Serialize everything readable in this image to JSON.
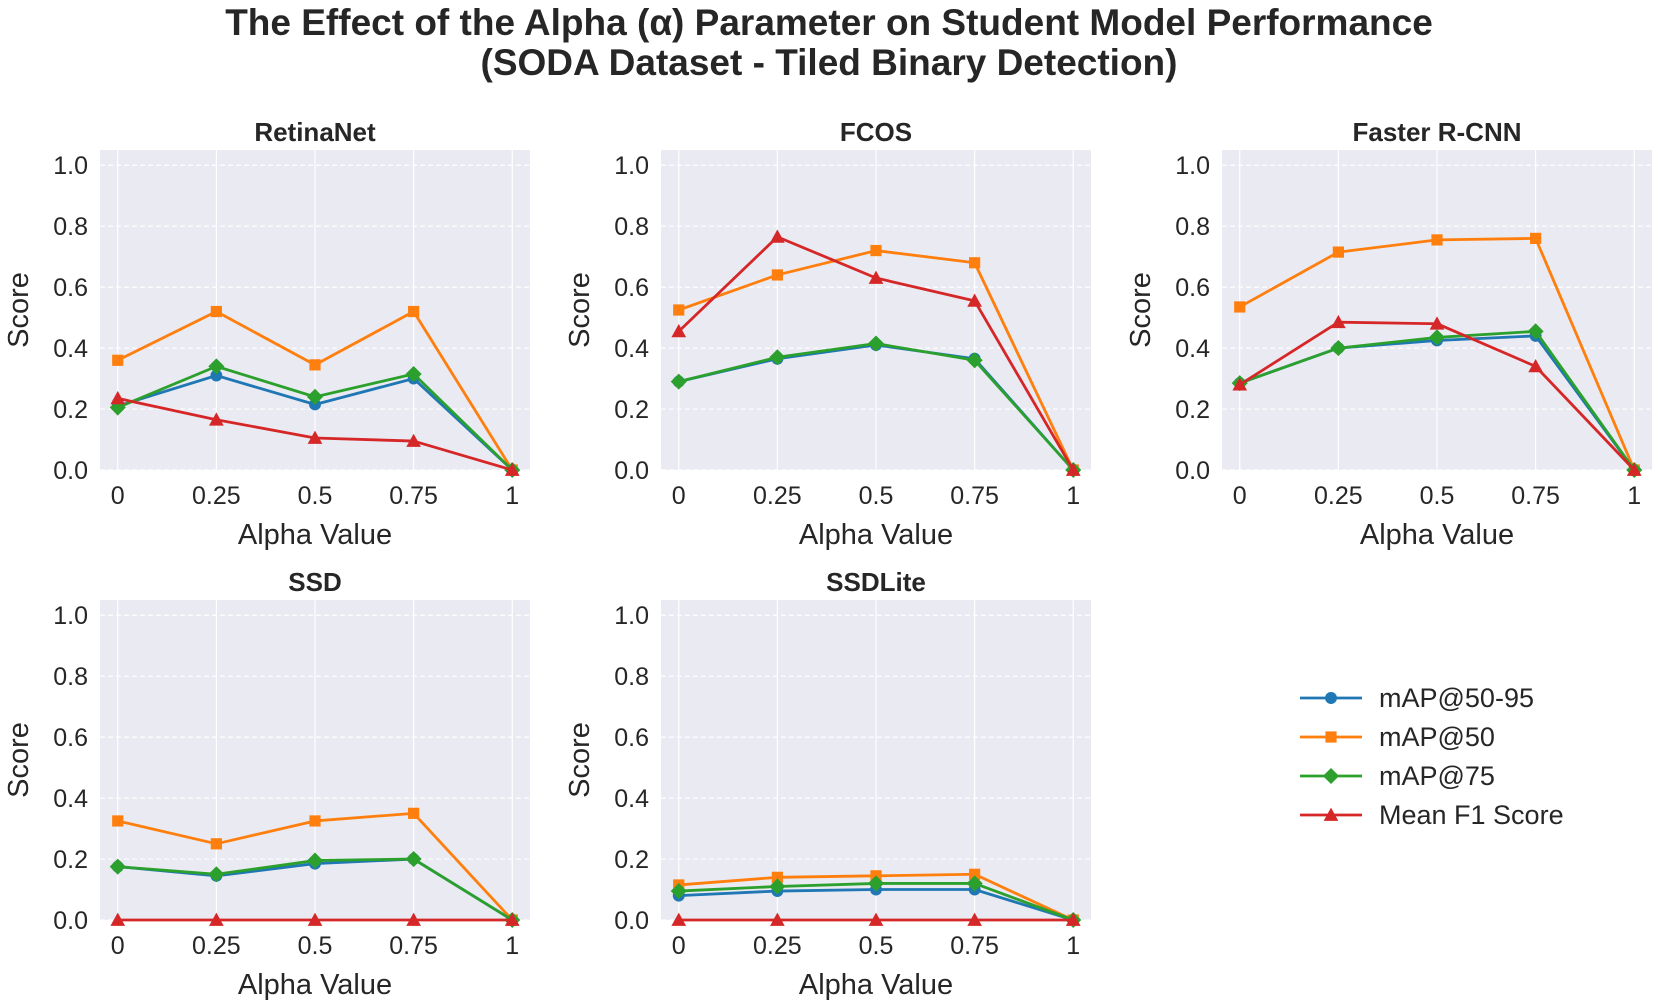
{
  "figure": {
    "title_line1": "The Effect of the Alpha (α) Parameter on Student Model Performance",
    "title_line2": "(SODA Dataset - Tiled Binary Detection)"
  },
  "style": {
    "panel_background": "#eaeaf2",
    "grid_color": "#ffffff",
    "series_colors": {
      "mAP@50-95": "#1f77b4",
      "mAP@50": "#ff7f0e",
      "mAP@75": "#2ca02c",
      "Mean F1 Score": "#d62728"
    },
    "series_markers": {
      "mAP@50-95": "circle",
      "mAP@50": "square",
      "mAP@75": "diamond",
      "Mean F1 Score": "triangle"
    }
  },
  "legend": {
    "placement": "right, in empty bottom-right panel",
    "entries": [
      "mAP@50-95",
      "mAP@50",
      "mAP@75",
      "Mean F1 Score"
    ]
  },
  "chart_data": [
    {
      "type": "line",
      "title": "RetinaNet",
      "xlabel": "Alpha Value",
      "ylabel": "Score",
      "x": [
        0,
        0.25,
        0.5,
        0.75,
        1
      ],
      "x_tick_labels": [
        "0",
        "0.25",
        "0.5",
        "0.75",
        "1"
      ],
      "y_ticks": [
        "0.0",
        "0.2",
        "0.4",
        "0.6",
        "0.8",
        "1.0"
      ],
      "ylim": [
        0,
        1.05
      ],
      "grid": true,
      "series": [
        {
          "name": "mAP@50-95",
          "values": [
            0.21,
            0.31,
            0.215,
            0.3,
            0.0
          ]
        },
        {
          "name": "mAP@50",
          "values": [
            0.36,
            0.52,
            0.345,
            0.52,
            0.0
          ]
        },
        {
          "name": "mAP@75",
          "values": [
            0.205,
            0.34,
            0.24,
            0.315,
            0.0
          ]
        },
        {
          "name": "Mean F1 Score",
          "values": [
            0.235,
            0.165,
            0.105,
            0.095,
            0.0
          ]
        }
      ]
    },
    {
      "type": "line",
      "title": "FCOS",
      "xlabel": "Alpha Value",
      "ylabel": "Score",
      "x": [
        0,
        0.25,
        0.5,
        0.75,
        1
      ],
      "x_tick_labels": [
        "0",
        "0.25",
        "0.5",
        "0.75",
        "1"
      ],
      "y_ticks": [
        "0.0",
        "0.2",
        "0.4",
        "0.6",
        "0.8",
        "1.0"
      ],
      "ylim": [
        0,
        1.05
      ],
      "grid": true,
      "series": [
        {
          "name": "mAP@50-95",
          "values": [
            0.29,
            0.365,
            0.41,
            0.365,
            0.0
          ]
        },
        {
          "name": "mAP@50",
          "values": [
            0.525,
            0.64,
            0.72,
            0.68,
            0.0
          ]
        },
        {
          "name": "mAP@75",
          "values": [
            0.29,
            0.37,
            0.415,
            0.36,
            0.0
          ]
        },
        {
          "name": "Mean F1 Score",
          "values": [
            0.455,
            0.765,
            0.63,
            0.555,
            0.0
          ]
        }
      ]
    },
    {
      "type": "line",
      "title": "Faster R-CNN",
      "xlabel": "Alpha Value",
      "ylabel": "Score",
      "x": [
        0,
        0.25,
        0.5,
        0.75,
        1
      ],
      "x_tick_labels": [
        "0",
        "0.25",
        "0.5",
        "0.75",
        "1"
      ],
      "y_ticks": [
        "0.0",
        "0.2",
        "0.4",
        "0.6",
        "0.8",
        "1.0"
      ],
      "ylim": [
        0,
        1.05
      ],
      "grid": true,
      "series": [
        {
          "name": "mAP@50-95",
          "values": [
            0.285,
            0.4,
            0.425,
            0.44,
            0.0
          ]
        },
        {
          "name": "mAP@50",
          "values": [
            0.535,
            0.715,
            0.755,
            0.76,
            0.0
          ]
        },
        {
          "name": "mAP@75",
          "values": [
            0.285,
            0.4,
            0.435,
            0.455,
            0.0
          ]
        },
        {
          "name": "Mean F1 Score",
          "values": [
            0.28,
            0.485,
            0.48,
            0.34,
            0.0
          ]
        }
      ]
    },
    {
      "type": "line",
      "title": "SSD",
      "xlabel": "Alpha Value",
      "ylabel": "Score",
      "x": [
        0,
        0.25,
        0.5,
        0.75,
        1
      ],
      "x_tick_labels": [
        "0",
        "0.25",
        "0.5",
        "0.75",
        "1"
      ],
      "y_ticks": [
        "0.0",
        "0.2",
        "0.4",
        "0.6",
        "0.8",
        "1.0"
      ],
      "ylim": [
        0,
        1.05
      ],
      "grid": true,
      "series": [
        {
          "name": "mAP@50-95",
          "values": [
            0.175,
            0.145,
            0.185,
            0.2,
            0.0
          ]
        },
        {
          "name": "mAP@50",
          "values": [
            0.325,
            0.25,
            0.325,
            0.35,
            0.0
          ]
        },
        {
          "name": "mAP@75",
          "values": [
            0.175,
            0.15,
            0.195,
            0.2,
            0.0
          ]
        },
        {
          "name": "Mean F1 Score",
          "values": [
            0.0,
            0.0,
            0.0,
            0.0,
            0.0
          ]
        }
      ]
    },
    {
      "type": "line",
      "title": "SSDLite",
      "xlabel": "Alpha Value",
      "ylabel": "Score",
      "x": [
        0,
        0.25,
        0.5,
        0.75,
        1
      ],
      "x_tick_labels": [
        "0",
        "0.25",
        "0.5",
        "0.75",
        "1"
      ],
      "y_ticks": [
        "0.0",
        "0.2",
        "0.4",
        "0.6",
        "0.8",
        "1.0"
      ],
      "ylim": [
        0,
        1.05
      ],
      "grid": true,
      "series": [
        {
          "name": "mAP@50-95",
          "values": [
            0.08,
            0.095,
            0.1,
            0.1,
            0.0
          ]
        },
        {
          "name": "mAP@50",
          "values": [
            0.115,
            0.14,
            0.145,
            0.15,
            0.0
          ]
        },
        {
          "name": "mAP@75",
          "values": [
            0.095,
            0.11,
            0.12,
            0.12,
            0.0
          ]
        },
        {
          "name": "Mean F1 Score",
          "values": [
            0.0,
            0.0,
            0.0,
            0.0,
            0.0
          ]
        }
      ]
    }
  ]
}
